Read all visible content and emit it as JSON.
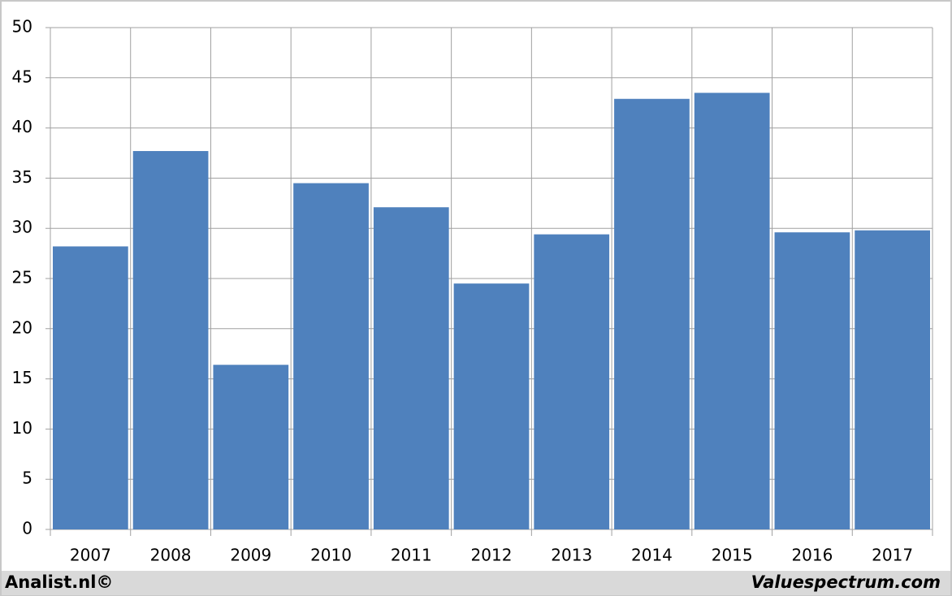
{
  "chart_data": {
    "type": "bar",
    "categories": [
      "2007",
      "2008",
      "2009",
      "2010",
      "2011",
      "2012",
      "2013",
      "2014",
      "2015",
      "2016",
      "2017"
    ],
    "values": [
      28.2,
      37.7,
      16.4,
      34.5,
      32.1,
      24.5,
      29.4,
      42.9,
      43.5,
      29.6,
      29.8
    ],
    "color": "#4f81bd",
    "ylim": [
      0,
      50
    ],
    "yticks": [
      0,
      5,
      10,
      15,
      20,
      25,
      30,
      35,
      40,
      45,
      50
    ],
    "grid": true,
    "source_left": "Analist.nl©",
    "source_right": "Valuespectrum.com"
  }
}
